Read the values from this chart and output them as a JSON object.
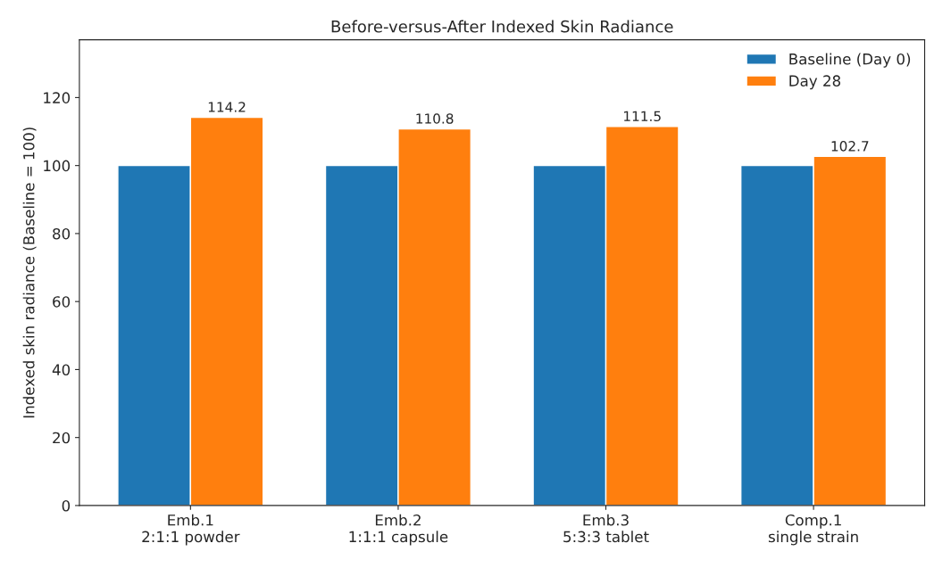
{
  "chart_data": {
    "type": "bar",
    "title": "Before-versus-After Indexed Skin Radiance",
    "ylabel": "Indexed skin radiance (Baseline = 100)",
    "categories": [
      "Emb.1\n2:1:1 powder",
      "Emb.2\n1:1:1 capsule",
      "Emb.3\n5:3:3 tablet",
      "Comp.1\nsingle strain"
    ],
    "series": [
      {
        "name": "Baseline (Day 0)",
        "color": "#1f77b4",
        "values": [
          100,
          100,
          100,
          100
        ]
      },
      {
        "name": "Day 28",
        "color": "#ff7f0e",
        "values": [
          114.2,
          110.8,
          111.5,
          102.7
        ],
        "value_labels": [
          "114.2",
          "110.8",
          "111.5",
          "102.7"
        ]
      }
    ],
    "ylim": [
      0,
      137
    ],
    "yticks": [
      0,
      20,
      40,
      60,
      80,
      100,
      120
    ],
    "grid": false,
    "legend": "top right"
  }
}
